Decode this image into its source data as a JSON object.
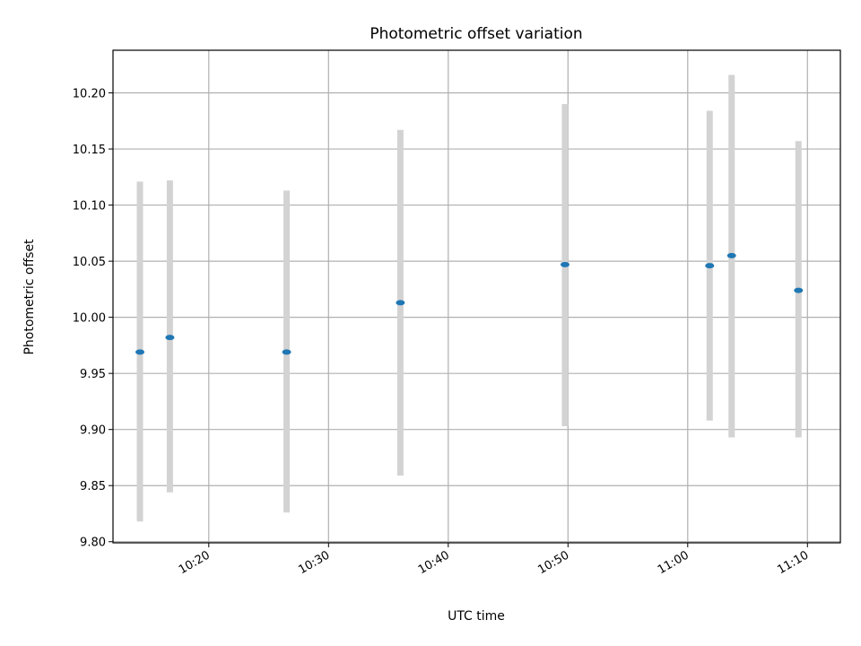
{
  "chart_data": {
    "type": "scatter",
    "title": "Photometric offset variation",
    "xlabel": "UTC time",
    "ylabel": "Photometric offset",
    "xlim": [
      "10:12:00",
      "11:12:45"
    ],
    "ylim": [
      9.799,
      10.238
    ],
    "grid": true,
    "x_ticks": [
      "10:20",
      "10:30",
      "10:40",
      "10:50",
      "11:00",
      "11:10"
    ],
    "y_ticks": [
      "9.80",
      "9.85",
      "9.90",
      "9.95",
      "10.00",
      "10.05",
      "10.10",
      "10.15",
      "10.20"
    ],
    "points": [
      {
        "x": "10:14:15",
        "y": 9.969,
        "ylow": 9.818,
        "yhigh": 10.121
      },
      {
        "x": "10:16:45",
        "y": 9.982,
        "ylow": 9.844,
        "yhigh": 10.122
      },
      {
        "x": "10:26:30",
        "y": 9.969,
        "ylow": 9.826,
        "yhigh": 10.113
      },
      {
        "x": "10:36:00",
        "y": 10.013,
        "ylow": 9.859,
        "yhigh": 10.167
      },
      {
        "x": "10:49:45",
        "y": 10.047,
        "ylow": 9.903,
        "yhigh": 10.19
      },
      {
        "x": "11:01:50",
        "y": 10.046,
        "ylow": 9.908,
        "yhigh": 10.184
      },
      {
        "x": "11:03:40",
        "y": 10.055,
        "ylow": 9.893,
        "yhigh": 10.216
      },
      {
        "x": "11:09:15",
        "y": 10.024,
        "ylow": 9.893,
        "yhigh": 10.157
      }
    ],
    "colors": {
      "marker": "#1f77b4",
      "errorbar": "#d3d3d3",
      "grid": "#b0b0b0"
    }
  }
}
